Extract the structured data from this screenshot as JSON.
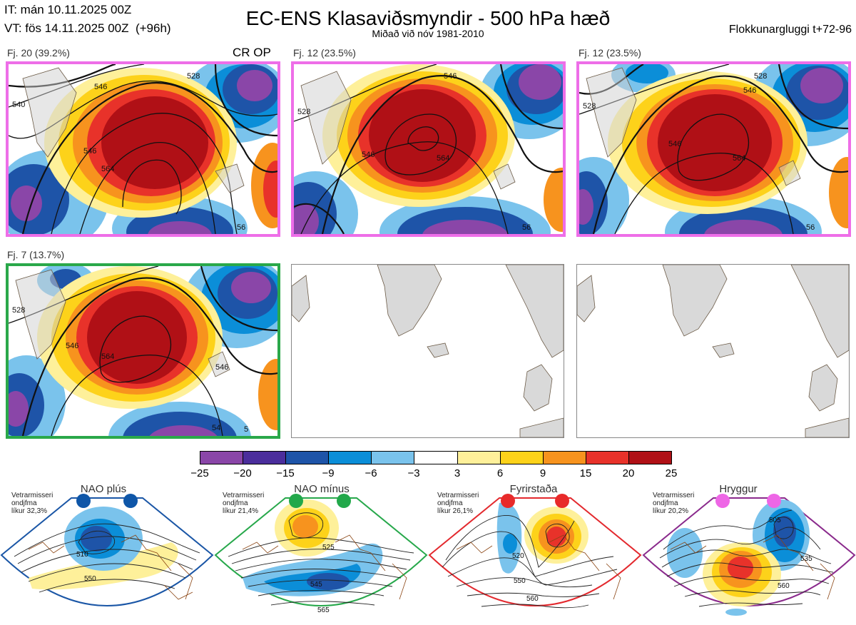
{
  "header": {
    "it_line": "IT: mán 10.11.2025 00Z",
    "vt_line": "VT: fös 14.11.2025 00Z  (+96h)",
    "title": "EC-ENS Klasaviðsmyndir - 500 hPa hæð",
    "subtitle": "Miðað við nóv 1981-2010",
    "window": "Flokkunargluggi t+72-96"
  },
  "clusters": [
    {
      "label": "Fj. 20 (39.2%)",
      "frame_color": "#ee6ee8",
      "tag": "CR OP",
      "contours": [
        "540",
        "546",
        "528",
        "564",
        "546",
        "56"
      ]
    },
    {
      "label": "Fj. 12 (23.5%)",
      "frame_color": "#ee6ee8",
      "contours": [
        "528",
        "546",
        "546",
        "564",
        "56"
      ]
    },
    {
      "label": "Fj. 12 (23.5%)",
      "frame_color": "#ee6ee8",
      "contours": [
        "528",
        "546",
        "528",
        "546",
        "564",
        "56"
      ]
    },
    {
      "label": "Fj. 7 (13.7%)",
      "frame_color": "#2aa84a",
      "contours": [
        "528",
        "546",
        "564",
        "546",
        "54",
        "5"
      ]
    }
  ],
  "colorbar": {
    "ticks": [
      "−25",
      "−20",
      "−15",
      "−9",
      "−6",
      "−3",
      "3",
      "6",
      "9",
      "15",
      "20",
      "25"
    ],
    "colors": [
      "#8a46a8",
      "#4b2e9c",
      "#1e54a8",
      "#0b8ed8",
      "#7ac3ec",
      "#ffffff",
      "#fef09a",
      "#fdd21a",
      "#f7931e",
      "#e8322a",
      "#b01016"
    ]
  },
  "regimes": [
    {
      "name": "NAO plús",
      "info": "Vetrarmisseri\nondjfma\nlíkur 32,3%",
      "color": "#1a56a6",
      "dot_color": "#0e56a8",
      "contours": [
        "510",
        "550"
      ]
    },
    {
      "name": "NAO mínus",
      "info": "Vetrarmisseri\nondjfma\nlíkur 21,4%",
      "color": "#27a84b",
      "dot_color": "#22a84a",
      "contours": [
        "525",
        "545",
        "565"
      ]
    },
    {
      "name": "Fyrirstaða",
      "info": "Vetrarmisseri\nondjfma\nlíkur 26,1%",
      "color": "#e3292e",
      "dot_color": "#e82a2a",
      "contours": [
        "520",
        "550",
        "560"
      ]
    },
    {
      "name": "Hryggur",
      "info": "Vetrarmisseri\nondjfma\nlíkur 20,2%",
      "color": "#8a2a8c",
      "dot_color": "#ee66e6",
      "contours": [
        "505",
        "535",
        "560"
      ]
    }
  ]
}
